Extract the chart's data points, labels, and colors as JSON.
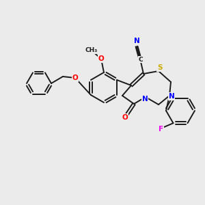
{
  "bg_color": "#ebebeb",
  "bond_color": "#1a1a1a",
  "atom_colors": {
    "N": "#0000ff",
    "O": "#ff0000",
    "S": "#ccaa00",
    "F": "#ee00ee",
    "C": "#1a1a1a"
  },
  "figsize": [
    3.0,
    3.0
  ],
  "dpi": 100
}
